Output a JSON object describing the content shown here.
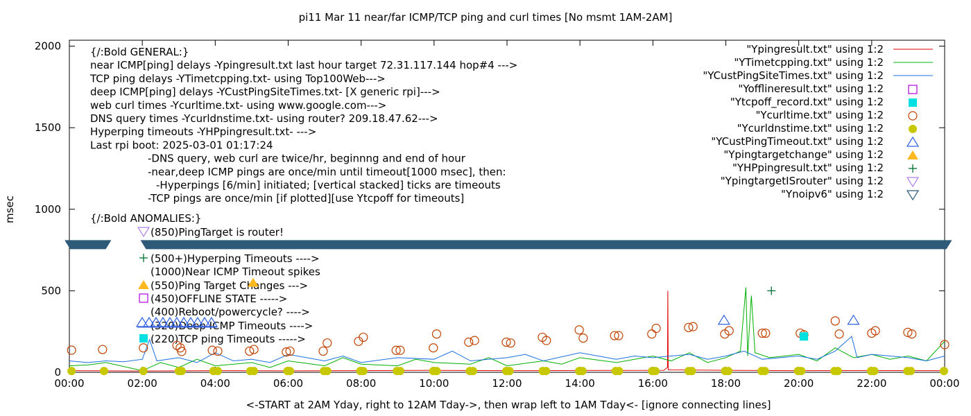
{
  "chart_data": {
    "type": "line",
    "title": "pi11 Mar 11  near/far ICMP/TCP ping and curl times [No msmt 1AM-2AM]",
    "xlabel": "<-START at 2AM Yday, right to 12AM Tday->, then wrap left to 1AM Tday<- [ignore connecting lines]",
    "ylabel": "msec",
    "xlim": [
      0,
      24
    ],
    "ylim": [
      0,
      2050
    ],
    "xticks": [
      0,
      2,
      4,
      6,
      8,
      10,
      12,
      14,
      16,
      18,
      20,
      22,
      24
    ],
    "xtick_labels": [
      "00:00",
      "02:00",
      "04:00",
      "06:00",
      "08:00",
      "10:00",
      "12:00",
      "14:00",
      "16:00",
      "18:00",
      "20:00",
      "22:00",
      "00:00"
    ],
    "yticks": [
      0,
      500,
      1000,
      1500,
      2000
    ],
    "ytick_labels": [
      "0",
      "500",
      "1000",
      "1500",
      "2000"
    ],
    "legend_position": "top-right",
    "legend": [
      {
        "label": "\"Ypingresult.txt\" using 1:2",
        "kind": "line",
        "color": "#e00000"
      },
      {
        "label": "\"YTimetcpping.txt\" using 1:2",
        "kind": "line",
        "color": "#00b000"
      },
      {
        "label": "\"YCustPingSiteTimes.txt\" using 1:2",
        "kind": "line",
        "color": "#1a6fe0"
      },
      {
        "label": "\"Yofflineresult.txt\" using 1:2",
        "kind": "open-square",
        "color": "#b000e0"
      },
      {
        "label": "\"Ytcpoff_record.txt\" using 1:2",
        "kind": "filled-square",
        "color": "#00e0e0"
      },
      {
        "label": "\"Ycurltime.txt\" using 1:2",
        "kind": "open-circle",
        "color": "#c04000"
      },
      {
        "label": "\"Ycurldnstime.txt\" using 1:2",
        "kind": "filled-circle",
        "color": "#c8c800"
      },
      {
        "label": "\"YCustPingTimeout.txt\" using 1:2",
        "kind": "open-triangle",
        "color": "#3060e0"
      },
      {
        "label": "\"Ypingtargetchange\" using 1:2",
        "kind": "filled-triangle",
        "color": "#ffb820"
      },
      {
        "label": "\"YHPpingresult.txt\" using 1:2",
        "kind": "plus",
        "color": "#007030"
      },
      {
        "label": "\"YpingtargetISrouter\" using 1:2",
        "kind": "open-down-triangle",
        "color": "#b080f0"
      },
      {
        "label": "\"Ynoipv6\" using 1:2",
        "kind": "open-down-triangle",
        "color": "#2c5a78"
      }
    ],
    "series": [
      {
        "name": "Ypingresult.txt",
        "color": "#e00000",
        "points": [
          [
            0,
            10
          ],
          [
            2,
            8
          ],
          [
            4,
            10
          ],
          [
            6,
            9
          ],
          [
            8,
            10
          ],
          [
            10,
            12
          ],
          [
            12,
            10
          ],
          [
            14,
            11
          ],
          [
            16.3,
            12
          ],
          [
            16.4,
            30
          ],
          [
            16.41,
            500
          ],
          [
            16.42,
            15
          ],
          [
            18,
            12
          ],
          [
            20,
            10
          ],
          [
            22,
            11
          ],
          [
            24,
            10
          ]
        ]
      },
      {
        "name": "YTimetcpping.txt",
        "color": "#00b000",
        "points": [
          [
            0,
            40
          ],
          [
            0.5,
            45
          ],
          [
            1,
            60
          ],
          [
            2,
            10
          ],
          [
            2.5,
            60
          ],
          [
            3,
            30
          ],
          [
            3.5,
            80
          ],
          [
            4,
            40
          ],
          [
            5,
            60
          ],
          [
            5.5,
            30
          ],
          [
            6,
            70
          ],
          [
            7,
            40
          ],
          [
            7.5,
            90
          ],
          [
            8,
            50
          ],
          [
            9,
            40
          ],
          [
            9.5,
            80
          ],
          [
            10,
            60
          ],
          [
            11,
            50
          ],
          [
            11.5,
            90
          ],
          [
            12,
            40
          ],
          [
            13,
            70
          ],
          [
            13.5,
            50
          ],
          [
            14,
            90
          ],
          [
            15,
            60
          ],
          [
            16,
            100
          ],
          [
            16.5,
            70
          ],
          [
            17,
            120
          ],
          [
            17.5,
            60
          ],
          [
            18,
            90
          ],
          [
            18.4,
            130
          ],
          [
            18.55,
            520
          ],
          [
            18.6,
            100
          ],
          [
            18.7,
            470
          ],
          [
            18.8,
            120
          ],
          [
            19.2,
            90
          ],
          [
            20,
            110
          ],
          [
            20.5,
            70
          ],
          [
            21,
            150
          ],
          [
            21.5,
            90
          ],
          [
            22,
            110
          ],
          [
            22.5,
            80
          ],
          [
            23,
            100
          ],
          [
            23.5,
            70
          ],
          [
            24,
            190
          ]
        ]
      },
      {
        "name": "YCustPingSiteTimes.txt",
        "color": "#1a6fe0",
        "points": [
          [
            0,
            70
          ],
          [
            0.5,
            60
          ],
          [
            1,
            70
          ],
          [
            1.5,
            65
          ],
          [
            2,
            80
          ],
          [
            2.2,
            200
          ],
          [
            2.4,
            70
          ],
          [
            3,
            90
          ],
          [
            3.5,
            60
          ],
          [
            4,
            120
          ],
          [
            4.5,
            70
          ],
          [
            5,
            80
          ],
          [
            5.5,
            60
          ],
          [
            6,
            110
          ],
          [
            7,
            70
          ],
          [
            7.5,
            100
          ],
          [
            8,
            60
          ],
          [
            9,
            90
          ],
          [
            10,
            80
          ],
          [
            10.5,
            130
          ],
          [
            11,
            70
          ],
          [
            12,
            90
          ],
          [
            12.5,
            110
          ],
          [
            13,
            70
          ],
          [
            14,
            120
          ],
          [
            15,
            80
          ],
          [
            15.5,
            100
          ],
          [
            16,
            90
          ],
          [
            17,
            110
          ],
          [
            17.5,
            80
          ],
          [
            18,
            100
          ],
          [
            18.5,
            130
          ],
          [
            19,
            80
          ],
          [
            20,
            100
          ],
          [
            20.5,
            80
          ],
          [
            21,
            130
          ],
          [
            21.45,
            220
          ],
          [
            21.6,
            90
          ],
          [
            22,
            110
          ],
          [
            23,
            90
          ],
          [
            23.5,
            70
          ],
          [
            24,
            100
          ]
        ]
      }
    ],
    "markers": {
      "curl_times": [
        [
          0.06,
          136
        ],
        [
          0.91,
          140
        ],
        [
          2.03,
          150
        ],
        [
          2.95,
          165
        ],
        [
          3.04,
          150
        ],
        [
          3.08,
          128
        ],
        [
          3.92,
          135
        ],
        [
          4.07,
          130
        ],
        [
          4.94,
          130
        ],
        [
          5.06,
          140
        ],
        [
          5.95,
          125
        ],
        [
          6.05,
          130
        ],
        [
          6.96,
          130
        ],
        [
          7.07,
          180
        ],
        [
          7.93,
          190
        ],
        [
          8.06,
          215
        ],
        [
          8.96,
          135
        ],
        [
          9.07,
          135
        ],
        [
          9.98,
          150
        ],
        [
          10.07,
          235
        ],
        [
          10.95,
          185
        ],
        [
          11.11,
          195
        ],
        [
          11.98,
          185
        ],
        [
          12.1,
          180
        ],
        [
          12.97,
          215
        ],
        [
          13.08,
          195
        ],
        [
          13.98,
          260
        ],
        [
          14.09,
          210
        ],
        [
          14.95,
          225
        ],
        [
          15.06,
          225
        ],
        [
          15.97,
          235
        ],
        [
          16.09,
          270
        ],
        [
          16.98,
          275
        ],
        [
          17.1,
          280
        ],
        [
          17.97,
          235
        ],
        [
          18.09,
          255
        ],
        [
          19.0,
          240
        ],
        [
          19.09,
          240
        ],
        [
          20.04,
          240
        ],
        [
          20.14,
          230
        ],
        [
          21.0,
          315
        ],
        [
          21.11,
          235
        ],
        [
          22.0,
          240
        ],
        [
          22.1,
          255
        ],
        [
          22.99,
          245
        ],
        [
          23.1,
          235
        ],
        [
          24.0,
          170
        ]
      ],
      "dns_times": [
        [
          0.06,
          8
        ],
        [
          0.95,
          8
        ],
        [
          2.03,
          8
        ],
        [
          3.0,
          8
        ],
        [
          3.08,
          8
        ],
        [
          3.95,
          8
        ],
        [
          4.07,
          8
        ],
        [
          4.96,
          8
        ],
        [
          5.06,
          8
        ],
        [
          5.98,
          8
        ],
        [
          6.05,
          8
        ],
        [
          6.98,
          8
        ],
        [
          7.07,
          8
        ],
        [
          7.98,
          8
        ],
        [
          8.06,
          8
        ],
        [
          8.98,
          8
        ],
        [
          9.07,
          8
        ],
        [
          9.98,
          8
        ],
        [
          10.07,
          8
        ],
        [
          10.98,
          8
        ],
        [
          11.07,
          8
        ],
        [
          11.98,
          8
        ],
        [
          12.07,
          8
        ],
        [
          12.98,
          8
        ],
        [
          13.07,
          8
        ],
        [
          13.98,
          8
        ],
        [
          14.07,
          8
        ],
        [
          14.98,
          8
        ],
        [
          15.07,
          8
        ],
        [
          15.98,
          8
        ],
        [
          16.07,
          8
        ],
        [
          16.98,
          8
        ],
        [
          17.07,
          8
        ],
        [
          17.98,
          8
        ],
        [
          18.07,
          8
        ],
        [
          18.98,
          8
        ],
        [
          19.07,
          8
        ],
        [
          19.98,
          8
        ],
        [
          20.07,
          8
        ],
        [
          20.98,
          8
        ],
        [
          21.07,
          8
        ],
        [
          21.98,
          8
        ],
        [
          22.07,
          8
        ],
        [
          22.98,
          8
        ],
        [
          23.07,
          8
        ],
        [
          23.98,
          8
        ]
      ],
      "deep_icmp_timeouts": [
        [
          17.95,
          320
        ],
        [
          21.5,
          320
        ]
      ],
      "ping_target_changes": [
        [
          5.04,
          550
        ]
      ],
      "tcp_ping_timeouts": [
        [
          20.14,
          220
        ]
      ],
      "hyperping_timeouts": [
        [
          19.25,
          500
        ]
      ],
      "noipv6_ranges": [
        [
          -0.13,
          1.15
        ],
        [
          1.95,
          24.2
        ]
      ],
      "noipv6_value": 785
    },
    "annotations": [
      {
        "text": "{/:Bold GENERAL:}",
        "indent": 0
      },
      {
        "text": "near ICMP[ping] delays -Ypingresult.txt last hour target 72.31.117.144 hop#4 --->",
        "indent": 0
      },
      {
        "text": "TCP ping delays -YTimetcpping.txt- using Top100Web--->",
        "indent": 0
      },
      {
        "text": "deep ICMP[ping] delays -YCustPingSiteTimes.txt- [X generic rpi]--->",
        "indent": 0
      },
      {
        "text": "web curl times -Ycurltime.txt- using www.google.com--->",
        "indent": 0
      },
      {
        "text": "DNS query times -Ycurldnstime.txt- using router? 209.18.47.62--->",
        "indent": 0
      },
      {
        "text": "Hyperping timeouts -YHPpingresult.txt- --->",
        "indent": 0
      },
      {
        "text": "Last rpi boot: 2025-03-01 01:17:24",
        "indent": 0
      },
      {
        "text": "-DNS query, web curl are twice/hr, beginnng and end of hour",
        "indent": 1
      },
      {
        "text": "-near,deep ICMP pings are once/min until timeout[1000 msec], then:",
        "indent": 1
      },
      {
        "text": "-Hyperpings [6/min] initiated; [vertical stacked] ticks are timeouts",
        "indent": 2
      },
      {
        "text": "-TCP pings are once/min [if plotted][use Ytcpoff for timeouts]",
        "indent": 1
      },
      {
        "text": "{/:Bold ANOMALIES:}",
        "indent": 0
      }
    ],
    "anomaly_keys": [
      {
        "text": "(850)PingTarget is router!",
        "marker": "open-down-triangle",
        "color": "#b080f0"
      },
      {
        "text": "(500+)Hyperping Timeouts ---->",
        "marker": "plus",
        "color": "#007030"
      },
      {
        "text": "(1000)Near ICMP Timeout spikes",
        "marker": "none",
        "color": "#000"
      },
      {
        "text": "(550)Ping Target Changes --->",
        "marker": "filled-triangle",
        "color": "#ffb820"
      },
      {
        "text": "(450)OFFLINE STATE ----->",
        "marker": "open-square",
        "color": "#b000e0"
      },
      {
        "text": "(400)Reboot/powercycle? ---->",
        "marker": "none",
        "color": "#000"
      },
      {
        "text": "(320)Deep ICMP Timeouts ---->",
        "marker": "triangle-row",
        "color": "#3060e0"
      },
      {
        "text": "(220)TCP ping Timeouts ----->",
        "marker": "filled-square",
        "color": "#00e0e0"
      }
    ]
  }
}
